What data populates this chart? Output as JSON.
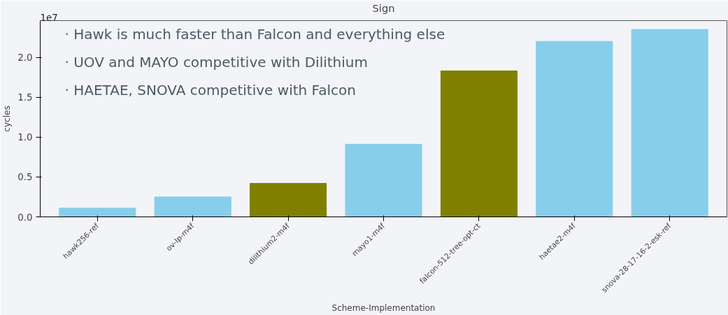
{
  "chart_data": {
    "type": "bar",
    "title": "Sign",
    "xlabel": "Scheme-Implementation",
    "ylabel": "cycles",
    "categories": [
      "hawk256-ref",
      "ov-Ip-m4f",
      "dilithium2-m4f",
      "mayo1-m4f",
      "falcon-512-tree-opt-ct",
      "haetae2-m4f",
      "snova-28-17-16-2-esk-ref"
    ],
    "values": [
      0.11,
      0.25,
      0.42,
      0.91,
      1.83,
      2.2,
      2.35
    ],
    "colors": [
      "#87ceeb",
      "#87ceeb",
      "#808000",
      "#87ceeb",
      "#808000",
      "#87ceeb",
      "#87ceeb"
    ],
    "ylim": [
      0,
      2.46
    ],
    "yticks": [
      {
        "value": 0,
        "label": "0.0"
      },
      {
        "value": 0.5,
        "label": "0.5"
      },
      {
        "value": 1,
        "label": "1.0"
      },
      {
        "value": 1.5,
        "label": "1.5"
      },
      {
        "value": 2,
        "label": "2.0"
      }
    ],
    "annotations": [
      "1e7",
      "· Hawk is much faster than Falcon and everything else",
      "· UOV and MAYO competitive with Dilithium",
      "· HAETAE, SNOVA competitive with Falcon"
    ],
    "grid": false
  }
}
